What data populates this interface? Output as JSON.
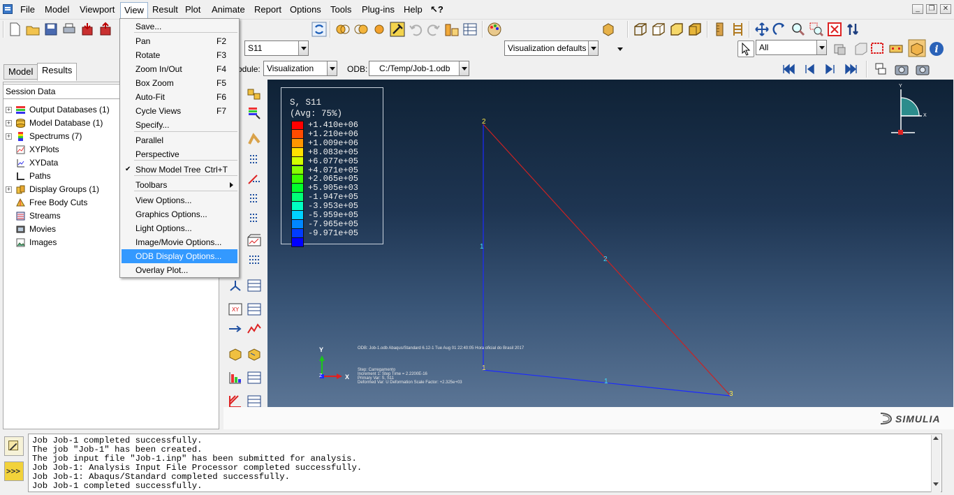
{
  "menubar": {
    "items": [
      "File",
      "Model",
      "Viewport",
      "View",
      "Result",
      "Plot",
      "Animate",
      "Report",
      "Options",
      "Tools",
      "Plug-ins",
      "Help"
    ],
    "help_arrow": "↖?"
  },
  "view_menu": {
    "items": [
      {
        "label": "Save...",
        "shortcut": ""
      },
      {
        "label": "Pan",
        "shortcut": "F2"
      },
      {
        "label": "Rotate",
        "shortcut": "F3"
      },
      {
        "label": "Zoom In/Out",
        "shortcut": "F4"
      },
      {
        "label": "Box Zoom",
        "shortcut": "F5"
      },
      {
        "label": "Auto-Fit",
        "shortcut": "F6"
      },
      {
        "label": "Cycle Views",
        "shortcut": "F7"
      },
      {
        "label": "Specify...",
        "shortcut": ""
      },
      {
        "label": "Parallel",
        "shortcut": ""
      },
      {
        "label": "Perspective",
        "shortcut": ""
      },
      {
        "label": "Show Model Tree",
        "shortcut": "Ctrl+T",
        "checked": true
      },
      {
        "label": "Toolbars",
        "shortcut": "",
        "submenu": true
      },
      {
        "label": "View Options...",
        "shortcut": ""
      },
      {
        "label": "Graphics Options...",
        "shortcut": ""
      },
      {
        "label": "Light Options...",
        "shortcut": ""
      },
      {
        "label": "Image/Movie Options...",
        "shortcut": ""
      },
      {
        "label": "ODB Display Options...",
        "shortcut": "",
        "highlighted": true
      },
      {
        "label": "Overlay Plot...",
        "shortcut": ""
      }
    ]
  },
  "toolbar": {
    "variable_combo": "S11",
    "render_style_combo": "Visualization defaults",
    "selection_combo": "All",
    "module_label": "odule:",
    "module_value": "Visualization",
    "odb_label": "ODB:",
    "odb_value": "C:/Temp/Job-1.odb"
  },
  "left_panel": {
    "tabs": [
      "Model",
      "Results"
    ],
    "active_tab": "Results",
    "session_header": "Session Data",
    "tree": [
      {
        "label": "Output Databases (1)",
        "expandable": true,
        "icon": "database-stack-icon"
      },
      {
        "label": "Model Database (1)",
        "expandable": true,
        "icon": "model-database-icon"
      },
      {
        "label": "Spectrums (7)",
        "expandable": true,
        "icon": "spectrum-icon"
      },
      {
        "label": "XYPlots",
        "expandable": false,
        "icon": "xyplot-icon"
      },
      {
        "label": "XYData",
        "expandable": false,
        "icon": "xydata-icon"
      },
      {
        "label": "Paths",
        "expandable": false,
        "icon": "path-icon"
      },
      {
        "label": "Display Groups (1)",
        "expandable": true,
        "icon": "display-group-icon"
      },
      {
        "label": "Free Body Cuts",
        "expandable": false,
        "icon": "free-body-cut-icon"
      },
      {
        "label": "Streams",
        "expandable": false,
        "icon": "stream-icon"
      },
      {
        "label": "Movies",
        "expandable": false,
        "icon": "movie-icon"
      },
      {
        "label": "Images",
        "expandable": false,
        "icon": "image-icon"
      }
    ]
  },
  "legend": {
    "title_line1": "S, S11",
    "title_line2": "(Avg: 75%)",
    "values": [
      "+1.410e+06",
      "+1.210e+06",
      "+1.009e+06",
      "+8.083e+05",
      "+6.077e+05",
      "+4.071e+05",
      "+2.065e+05",
      "+5.905e+03",
      "-1.947e+05",
      "-3.953e+05",
      "-5.959e+05",
      "-7.965e+05",
      "-9.971e+05"
    ],
    "colors": [
      "#ff0000",
      "#ff4b00",
      "#ff9600",
      "#ffe100",
      "#d2ff00",
      "#87ff00",
      "#3cff00",
      "#00ff2d",
      "#00ff78",
      "#00ffc3",
      "#00d2ff",
      "#0087ff",
      "#003cff",
      "#0000ff"
    ]
  },
  "viewport": {
    "node_labels": [
      "2",
      "1",
      "3"
    ],
    "element_labels": [
      "1",
      "2",
      "3"
    ],
    "triad": {
      "x": "X",
      "y": "Y",
      "z": "Z"
    },
    "small_triad": {
      "x": "X",
      "y": "Y"
    },
    "info_line": "ODB: Job-1.odb    Abaqus/Standard 6.12-1    Tue Aug 01 22:40:05 Hora oficial do Brasil 2017",
    "step_line": "Step: Carregamento",
    "increment_line": "Increment     1: Step Time =    2.2200E-16",
    "primary_var_line": "Primary Var: S, S11",
    "deformed_var_line": "Deformed Var: U   Deformation Scale Factor: +2.325e+03"
  },
  "brand": "SIMULIA",
  "messages": [
    "Job Job-1 completed successfully.",
    "The job \"Job-1\" has been created.",
    "The job input file \"Job-1.inp\" has been submitted for analysis.",
    "Job Job-1: Analysis Input File Processor completed successfully.",
    "Job Job-1: Abaqus/Standard completed successfully.",
    "Job Job-1 completed successfully."
  ]
}
